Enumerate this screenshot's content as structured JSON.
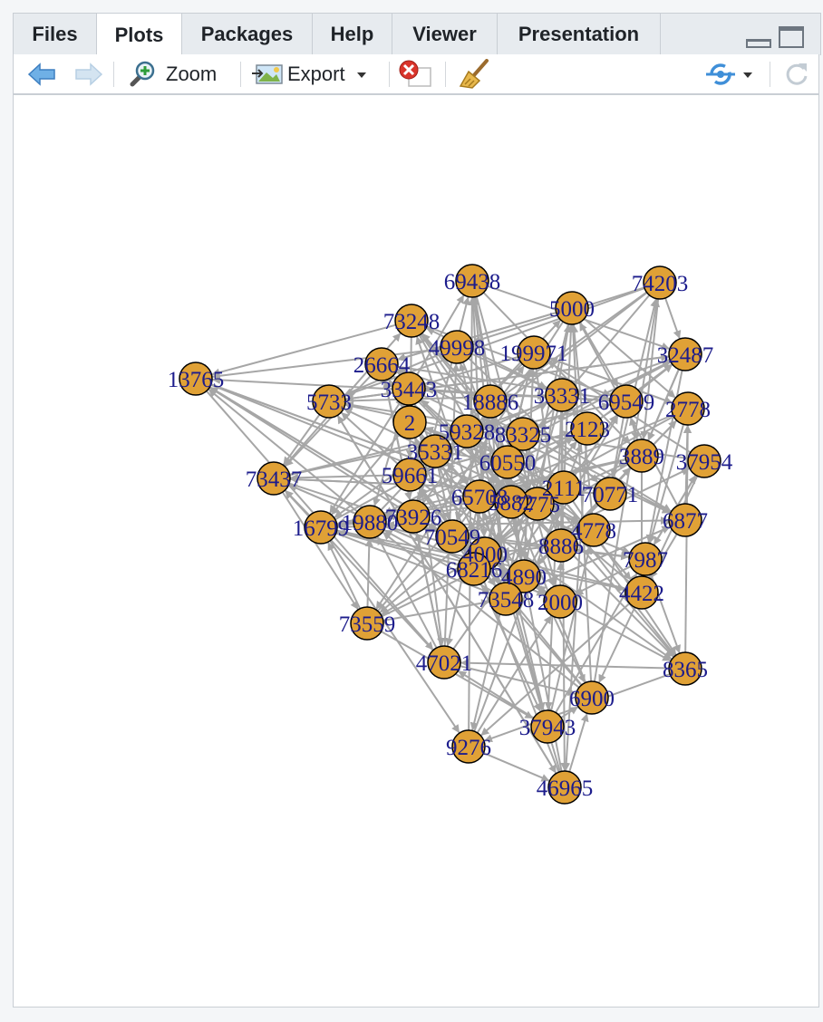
{
  "tabs": [
    {
      "label": "Files"
    },
    {
      "label": "Plots",
      "active": true
    },
    {
      "label": "Packages"
    },
    {
      "label": "Help"
    },
    {
      "label": "Viewer"
    },
    {
      "label": "Presentation"
    }
  ],
  "toolbar": {
    "zoom_label": "Zoom",
    "export_label": "Export",
    "icons": [
      "back-arrow-icon",
      "forward-arrow-icon",
      "zoom-icon",
      "export-image-icon",
      "remove-plot-icon",
      "clear-all-broom-icon",
      "publish-icon",
      "refresh-icon"
    ]
  },
  "plot": {
    "type": "network-graph",
    "node_fill": "#e0a136",
    "node_stroke": "#000000",
    "edge_color": "#a6a6a6",
    "label_color": "#1c1c8c",
    "nodes": [
      "13765",
      "5733",
      "73437",
      "16799",
      "26664",
      "73248",
      "69438",
      "49998",
      "199971",
      "5000",
      "74203",
      "32487",
      "2778",
      "69549",
      "33331",
      "18886",
      "33443",
      "2",
      "59328",
      "83325",
      "2123",
      "3889",
      "37954",
      "6877",
      "70771",
      "2111",
      "7775",
      "65708",
      "5882",
      "59661",
      "35331",
      "60550",
      "19880",
      "73926",
      "70549",
      "4000",
      "4778",
      "8886",
      "7987",
      "4422",
      "68216",
      "4890",
      "73548",
      "2000",
      "8365",
      "73559",
      "47021",
      "6900",
      "37943",
      "9276",
      "46965"
    ]
  }
}
